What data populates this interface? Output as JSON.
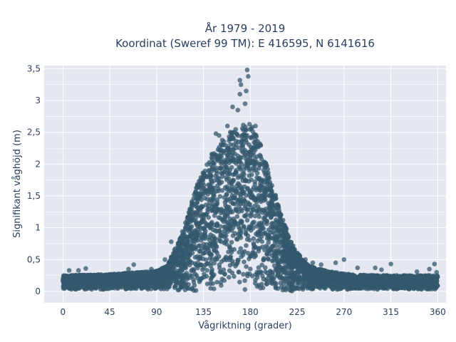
{
  "chart_data": {
    "type": "scatter",
    "title_line1": "År 1979 - 2019",
    "title_line2": "Koordinat (Sweref 99 TM): E 416595, N 6141616",
    "xlabel": "Vågriktning (grader)",
    "ylabel": "Signifikant våghöjd (m)",
    "xlim": [
      -18,
      368
    ],
    "ylim": [
      -0.18,
      3.55
    ],
    "xticks": [
      0,
      45,
      90,
      135,
      180,
      225,
      270,
      315,
      360
    ],
    "xtick_labels": [
      "0",
      "45",
      "90",
      "135",
      "180",
      "225",
      "270",
      "315",
      "360"
    ],
    "yticks": [
      0,
      0.5,
      1,
      1.5,
      2,
      2.5,
      3,
      3.5
    ],
    "ytick_labels": [
      "0",
      "0,5",
      "1",
      "1,5",
      "2",
      "2,5",
      "3",
      "3,5"
    ],
    "grid": true,
    "marker_color": "#34586e",
    "plot_background": "#e5e8f0",
    "envelope": {
      "direction": [
        0,
        45,
        90,
        100,
        110,
        120,
        130,
        140,
        150,
        160,
        170,
        180,
        190,
        200,
        210,
        220,
        230,
        240,
        260,
        280,
        300,
        330,
        360
      ],
      "max_height": [
        0.25,
        0.27,
        0.32,
        0.4,
        0.75,
        1.2,
        1.75,
        2.1,
        2.3,
        2.5,
        2.6,
        2.65,
        2.3,
        1.75,
        1.2,
        0.75,
        0.5,
        0.38,
        0.3,
        0.26,
        0.25,
        0.25,
        0.25
      ]
    },
    "outliers": [
      {
        "x": 177,
        "y": 3.48
      },
      {
        "x": 178,
        "y": 3.38
      },
      {
        "x": 170,
        "y": 3.32
      },
      {
        "x": 171,
        "y": 3.25
      },
      {
        "x": 176,
        "y": 3.15
      },
      {
        "x": 170,
        "y": 3.1
      },
      {
        "x": 163,
        "y": 2.9
      },
      {
        "x": 168,
        "y": 2.85
      },
      {
        "x": 175,
        "y": 2.95
      },
      {
        "x": 147,
        "y": 2.48
      },
      {
        "x": 150,
        "y": 2.45
      },
      {
        "x": 153,
        "y": 2.38
      },
      {
        "x": 158,
        "y": 2.6
      },
      {
        "x": 185,
        "y": 2.6
      },
      {
        "x": 98,
        "y": 0.5
      },
      {
        "x": 104,
        "y": 0.78
      },
      {
        "x": 68,
        "y": 0.42
      },
      {
        "x": 63,
        "y": 0.35
      },
      {
        "x": 22,
        "y": 0.36
      },
      {
        "x": 15,
        "y": 0.33
      },
      {
        "x": 6,
        "y": 0.33
      },
      {
        "x": 85,
        "y": 0.35
      },
      {
        "x": 270,
        "y": 0.5
      },
      {
        "x": 262,
        "y": 0.45
      },
      {
        "x": 283,
        "y": 0.37
      },
      {
        "x": 300,
        "y": 0.37
      },
      {
        "x": 306,
        "y": 0.34
      },
      {
        "x": 315,
        "y": 0.43
      },
      {
        "x": 340,
        "y": 0.31
      },
      {
        "x": 352,
        "y": 0.35
      },
      {
        "x": 357,
        "y": 0.43
      },
      {
        "x": 359,
        "y": 0.3
      },
      {
        "x": 233,
        "y": 0.5
      },
      {
        "x": 240,
        "y": 0.45
      },
      {
        "x": 248,
        "y": 0.42
      }
    ]
  }
}
